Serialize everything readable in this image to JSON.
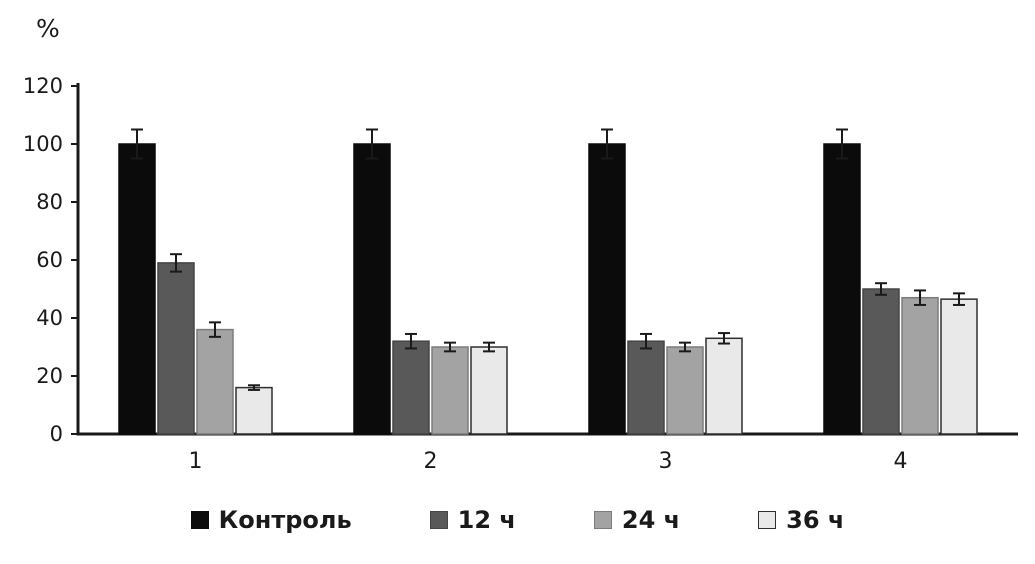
{
  "chart_data": {
    "type": "bar",
    "title": "",
    "xlabel": "",
    "ylabel": "%",
    "ylim": [
      0,
      120
    ],
    "yticks": [
      0,
      20,
      40,
      60,
      80,
      100,
      120
    ],
    "categories": [
      "1",
      "2",
      "3",
      "4"
    ],
    "series": [
      {
        "name": "Контроль",
        "color": "#0b0b0b",
        "border": "#0b0b0b",
        "values": [
          100,
          100,
          100,
          100
        ],
        "errors": [
          5,
          5,
          5,
          5
        ]
      },
      {
        "name": "12 ч",
        "color": "#595959",
        "border": "#454545",
        "values": [
          59,
          32,
          32,
          50
        ],
        "errors": [
          3,
          2.5,
          2.5,
          2
        ]
      },
      {
        "name": "24 ч",
        "color": "#a3a3a3",
        "border": "#7c7c7c",
        "values": [
          36,
          30,
          30,
          47
        ],
        "errors": [
          2.5,
          1.5,
          1.5,
          2.5
        ]
      },
      {
        "name": "36 ч",
        "color": "#e9e9e9",
        "border": "#2f2f2f",
        "values": [
          16,
          30,
          33,
          46.5
        ],
        "errors": [
          0.8,
          1.5,
          1.8,
          2
        ]
      }
    ],
    "legend_position": "bottom",
    "grid": false,
    "error_bars": true
  }
}
